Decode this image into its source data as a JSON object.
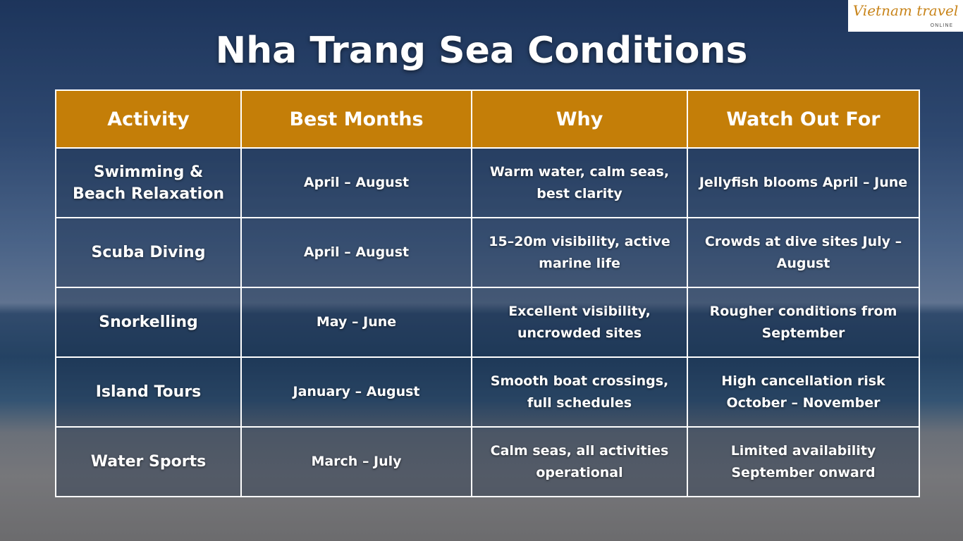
{
  "logo": {
    "name": "Vietnam travel",
    "tagline": "ONLINE"
  },
  "title": "Nha Trang Sea Conditions",
  "table": {
    "headers": [
      "Activity",
      "Best Months",
      "Why",
      "Watch Out For"
    ],
    "rows": [
      [
        "Swimming & Beach Relaxation",
        "April – August",
        "Warm water, calm seas, best clarity",
        "Jellyfish blooms April – June"
      ],
      [
        "Scuba Diving",
        "April – August",
        "15–20m visibility, active marine life",
        "Crowds at dive sites July – August"
      ],
      [
        "Snorkelling",
        "May – June",
        "Excellent visibility, uncrowded sites",
        "Rougher conditions from September"
      ],
      [
        "Island Tours",
        "January – August",
        "Smooth boat crossings, full schedules",
        "High cancellation risk October – November"
      ],
      [
        "Water Sports",
        "March – July",
        "Calm seas, all activities operational",
        "Limited availability September onward"
      ]
    ]
  }
}
